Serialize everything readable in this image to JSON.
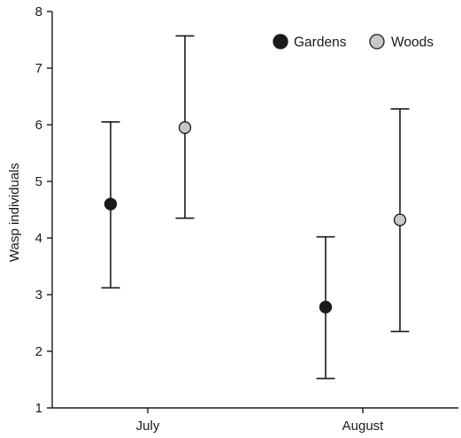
{
  "chart_data": {
    "type": "scatter",
    "title": "",
    "xlabel": "",
    "ylabel": "Wasp individuals",
    "categories": [
      "July",
      "August"
    ],
    "ylim": [
      1,
      8
    ],
    "yticks": [
      1,
      2,
      3,
      4,
      5,
      6,
      7,
      8
    ],
    "grid": false,
    "legend_position": "top-right",
    "series": [
      {
        "name": "Gardens",
        "color": "#1a1a1a",
        "values": [
          4.6,
          2.78
        ],
        "err_low": [
          3.12,
          1.52
        ],
        "err_high": [
          6.05,
          4.02
        ]
      },
      {
        "name": "Woods",
        "color": "#c8c8c8",
        "values": [
          5.95,
          4.32
        ],
        "err_low": [
          4.35,
          2.35
        ],
        "err_high": [
          7.57,
          6.28
        ]
      }
    ]
  }
}
